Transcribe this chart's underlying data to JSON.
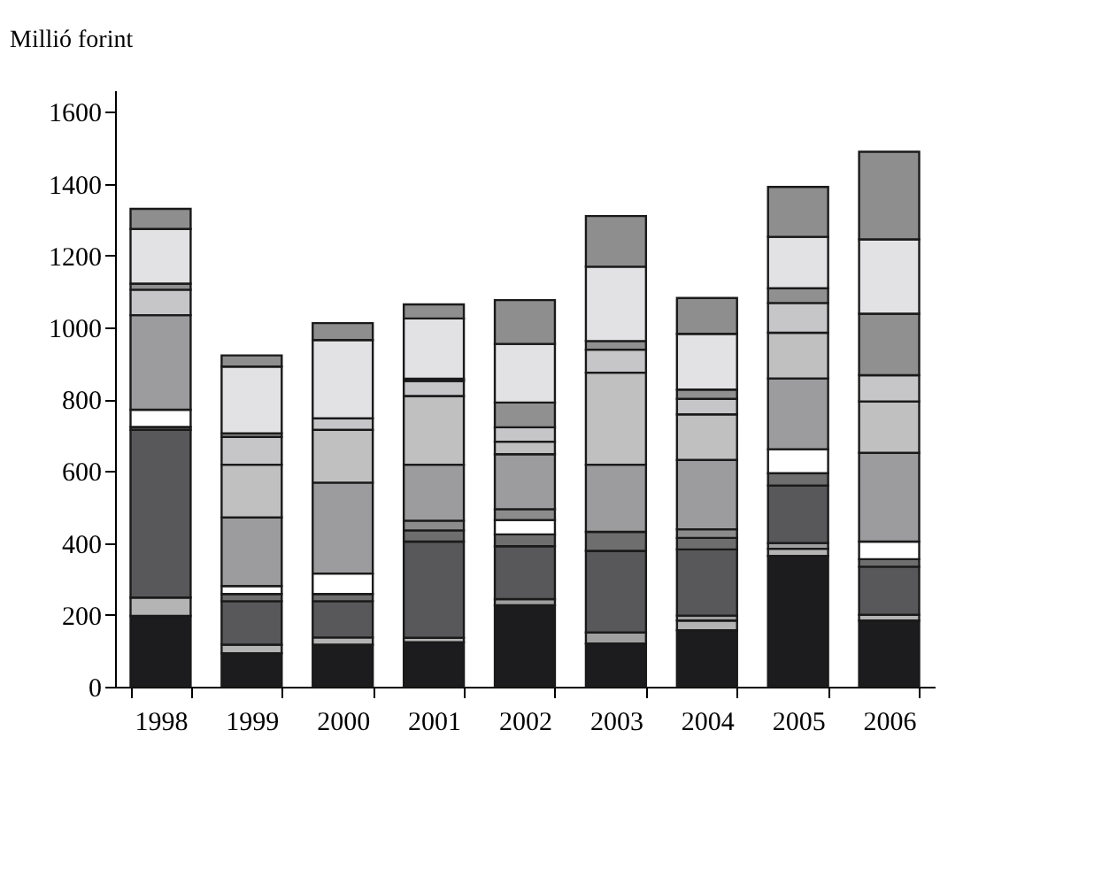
{
  "chart_data": {
    "type": "bar",
    "stacked": true,
    "ylabel": "Millió forint",
    "categories": [
      "1998",
      "1999",
      "2000",
      "2001",
      "2002",
      "2003",
      "2004",
      "2005",
      "2006"
    ],
    "ylim": [
      0,
      1660
    ],
    "yticks": [
      0,
      200,
      400,
      600,
      800,
      1000,
      1200,
      1400,
      1600
    ],
    "grid": false,
    "legend": false,
    "series": [
      {
        "color": "#1c1c1e",
        "values": [
          197,
          93,
          117,
          124,
          227,
          120,
          157,
          364,
          184
        ]
      },
      {
        "color": "#b4b4b4",
        "values": [
          51,
          24,
          20,
          12,
          null,
          null,
          27,
          20,
          16
        ]
      },
      {
        "color": "#a0a0a0",
        "values": [
          null,
          null,
          null,
          null,
          17,
          31,
          14,
          16,
          null
        ]
      },
      {
        "color": "#58585a",
        "values": [
          467,
          121,
          101,
          268,
          147,
          227,
          184,
          160,
          134
        ]
      },
      {
        "color": "#6e6e6e",
        "values": [
          8,
          20,
          20,
          31,
          33,
          53,
          32,
          34,
          21
        ]
      },
      {
        "color": "#ffffff",
        "values": [
          48,
          22,
          57,
          null,
          40,
          null,
          null,
          67,
          49
        ]
      },
      {
        "color": "#8c8c8c",
        "values": [
          null,
          null,
          null,
          27,
          30,
          null,
          24,
          null,
          null
        ]
      },
      {
        "color": "#9c9c9e",
        "values": [
          263,
          191,
          253,
          156,
          153,
          187,
          193,
          197,
          247
        ]
      },
      {
        "color": "#c0c0c0",
        "values": [
          null,
          147,
          147,
          191,
          35,
          256,
          127,
          127,
          143
        ]
      },
      {
        "color": "#c6c6c8",
        "values": [
          71,
          77,
          32,
          42,
          40,
          64,
          43,
          83,
          73
        ]
      },
      {
        "color": "#909090",
        "values": [
          17,
          10,
          null,
          6,
          69,
          24,
          26,
          41,
          171
        ]
      },
      {
        "color": "#e2e2e4",
        "values": [
          152,
          186,
          218,
          168,
          163,
          207,
          155,
          143,
          207
        ]
      },
      {
        "color": "#8e8e8e",
        "values": [
          56,
          31,
          47,
          39,
          122,
          141,
          100,
          139,
          244
        ]
      }
    ]
  }
}
